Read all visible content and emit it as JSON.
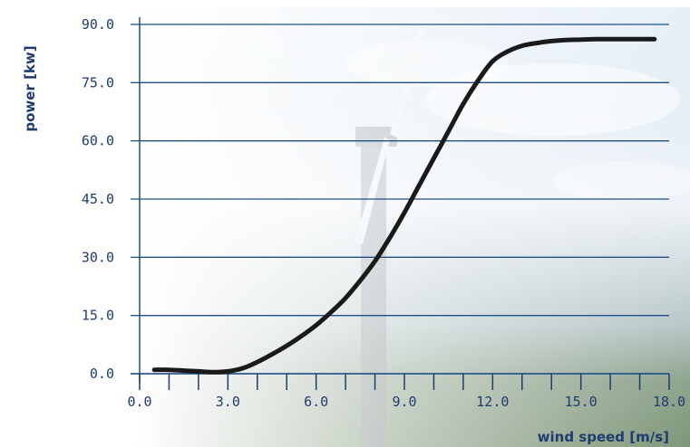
{
  "chart_data": {
    "type": "line",
    "title": "",
    "xlabel": "wind speed [m/s]",
    "ylabel": "power [kw]",
    "xlim": [
      0,
      18
    ],
    "ylim": [
      0,
      90
    ],
    "x_ticks": [
      "0.0",
      "3.0",
      "6.0",
      "9.0",
      "12.0",
      "15.0",
      "18.0"
    ],
    "y_ticks": [
      "0.0",
      "15.0",
      "30.0",
      "45.0",
      "60.0",
      "75.0",
      "90.0"
    ],
    "grid": "horizontal",
    "background": "wind turbine photo",
    "colors": {
      "line": "#1a1a1a",
      "grid": "#1f4f86",
      "text": "#1f3c6e"
    },
    "series": [
      {
        "x": [
          0.5,
          1.0,
          1.5,
          2.0,
          2.5,
          3.0,
          3.5,
          4.0,
          4.5,
          5.0,
          5.5,
          6.0,
          6.5,
          7.0,
          7.5,
          8.0,
          8.5,
          9.0,
          9.5,
          10.0,
          10.5,
          11.0,
          11.5,
          12.0,
          12.5,
          13.0,
          13.5,
          14.0,
          14.5,
          15.0,
          15.5,
          16.0,
          16.5,
          17.0,
          17.5
        ],
        "y": [
          1.0,
          1.0,
          0.8,
          0.6,
          0.4,
          0.6,
          1.4,
          3.0,
          5.0,
          7.2,
          9.7,
          12.5,
          15.8,
          19.5,
          24.0,
          29.0,
          35.0,
          41.5,
          48.5,
          55.5,
          62.5,
          69.5,
          75.5,
          80.5,
          83.0,
          84.5,
          85.2,
          85.7,
          86.0,
          86.1,
          86.2,
          86.2,
          86.2,
          86.2,
          86.2
        ]
      }
    ]
  }
}
